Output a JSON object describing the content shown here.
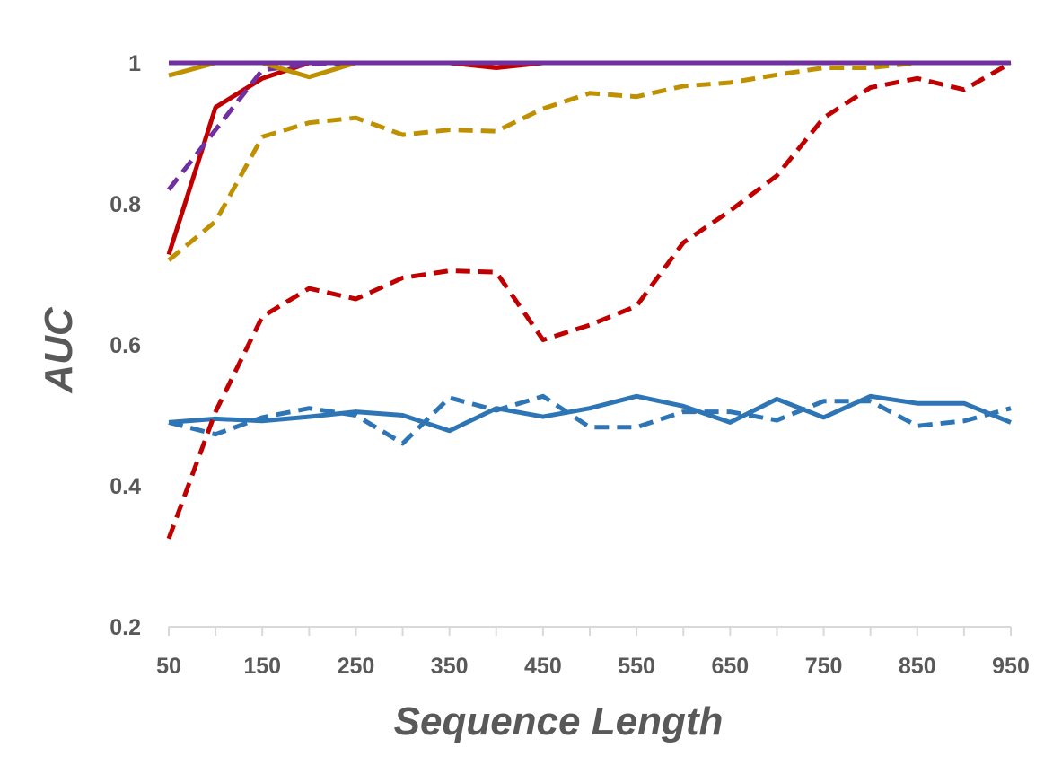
{
  "chart_data": {
    "type": "line",
    "title": "",
    "xlabel": "Sequence Length",
    "ylabel": "AUC",
    "x": [
      50,
      100,
      150,
      200,
      250,
      300,
      350,
      400,
      450,
      500,
      550,
      600,
      650,
      700,
      750,
      800,
      850,
      900,
      950
    ],
    "xlim": [
      50,
      950
    ],
    "ylim": [
      0.2,
      1.0
    ],
    "x_ticks": [
      50,
      150,
      250,
      350,
      450,
      550,
      650,
      750,
      850,
      950
    ],
    "y_ticks": [
      0.2,
      0.4,
      0.6,
      0.8,
      1.0
    ],
    "y_tick_labels": [
      "0.2",
      "0.4",
      "0.6",
      "0.8",
      "1"
    ],
    "x_tick_labels": [
      "50",
      "150",
      "250",
      "350",
      "450",
      "550",
      "650",
      "750",
      "850",
      "950"
    ],
    "grid": false,
    "legend": "none",
    "series": [
      {
        "color": "#2e75b6",
        "dash": false,
        "values": [
          0.49,
          0.495,
          0.492,
          0.498,
          0.505,
          0.5,
          0.478,
          0.51,
          0.498,
          0.51,
          0.527,
          0.513,
          0.49,
          0.523,
          0.497,
          0.527,
          0.517,
          0.517,
          0.49
        ]
      },
      {
        "color": "#2e75b6",
        "dash": true,
        "values": [
          0.49,
          0.473,
          0.497,
          0.51,
          0.5,
          0.46,
          0.525,
          0.507,
          0.527,
          0.483,
          0.483,
          0.505,
          0.505,
          0.493,
          0.52,
          0.52,
          0.485,
          0.492,
          0.51
        ]
      },
      {
        "color": "#c00000",
        "dash": true,
        "values": [
          0.325,
          0.505,
          0.64,
          0.68,
          0.665,
          0.695,
          0.705,
          0.703,
          0.607,
          0.628,
          0.655,
          0.745,
          0.79,
          0.84,
          0.922,
          0.965,
          0.978,
          0.962,
          1.0
        ]
      },
      {
        "color": "#bf9000",
        "dash": true,
        "values": [
          0.72,
          0.775,
          0.895,
          0.915,
          0.922,
          0.898,
          0.905,
          0.903,
          0.935,
          0.957,
          0.952,
          0.967,
          0.972,
          0.983,
          0.993,
          0.993,
          1.0,
          1.0,
          1.0
        ]
      },
      {
        "color": "#c00000",
        "dash": false,
        "values": [
          0.728,
          0.937,
          0.978,
          1.0,
          1.0,
          1.0,
          1.0,
          0.993,
          1.0,
          1.0,
          1.0,
          1.0,
          1.0,
          1.0,
          1.0,
          1.0,
          1.0,
          1.0,
          1.0
        ]
      },
      {
        "color": "#7030a0",
        "dash": true,
        "values": [
          0.82,
          0.905,
          0.99,
          0.998,
          1.0,
          1.0,
          1.0,
          1.0,
          1.0,
          1.0,
          1.0,
          1.0,
          1.0,
          1.0,
          1.0,
          1.0,
          1.0,
          1.0,
          1.0
        ]
      },
      {
        "color": "#bf9000",
        "dash": false,
        "values": [
          0.982,
          1.0,
          1.0,
          0.98,
          1.0,
          1.0,
          1.0,
          1.0,
          1.0,
          1.0,
          1.0,
          1.0,
          1.0,
          1.0,
          1.0,
          1.0,
          1.0,
          1.0,
          1.0
        ]
      },
      {
        "color": "#7030a0",
        "dash": false,
        "values": [
          1.0,
          1.0,
          1.0,
          1.0,
          1.0,
          1.0,
          1.0,
          1.0,
          1.0,
          1.0,
          1.0,
          1.0,
          1.0,
          1.0,
          1.0,
          1.0,
          1.0,
          1.0,
          1.0
        ]
      }
    ]
  }
}
